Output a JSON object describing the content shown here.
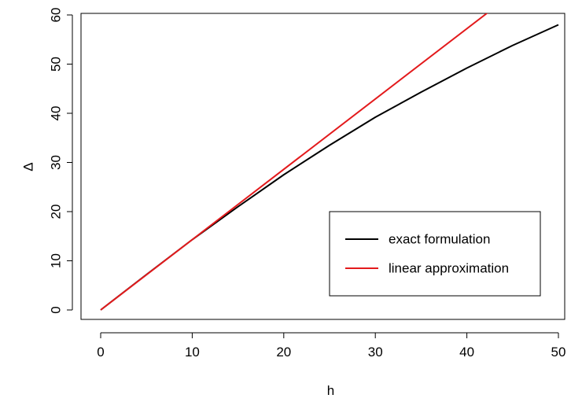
{
  "chart_data": {
    "type": "line",
    "xlabel": "h",
    "ylabel": "Δ",
    "xlim": [
      0,
      50
    ],
    "ylim": [
      0,
      60
    ],
    "x_ticks": [
      0,
      10,
      20,
      30,
      40,
      50
    ],
    "y_ticks": [
      0,
      10,
      20,
      30,
      40,
      50,
      60
    ],
    "grid": false,
    "legend_position": "bottom-right",
    "series": [
      {
        "name": "exact formulation",
        "color": "#000000",
        "x": [
          0,
          5,
          10,
          15,
          20,
          25,
          30,
          35,
          40,
          45,
          50
        ],
        "y": [
          0,
          7.2,
          14.3,
          21.0,
          27.5,
          33.5,
          39.2,
          44.3,
          49.2,
          53.8,
          58.0
        ]
      },
      {
        "name": "linear approximation",
        "color": "#e31a1c",
        "x": [
          0,
          42.3
        ],
        "y": [
          0,
          60.5
        ]
      }
    ]
  }
}
